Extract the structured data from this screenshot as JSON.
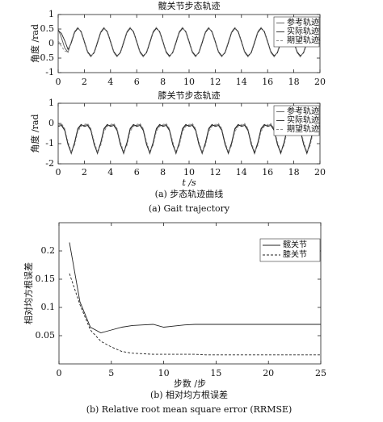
{
  "chart_data": [
    {
      "type": "line",
      "title": "髋关节步态轨迹",
      "ylabel": "角度 /rad",
      "x": [
        0,
        0.25,
        0.5,
        0.75,
        1,
        1.25,
        1.5,
        1.75,
        2,
        2.25,
        2.5,
        2.75,
        3,
        3.25,
        3.5,
        3.75,
        4,
        4.25,
        4.5,
        4.75,
        5,
        5.25,
        5.5,
        5.75,
        6,
        6.25,
        6.5,
        6.75,
        7,
        7.25,
        7.5,
        7.75,
        8,
        8.25,
        8.5,
        8.75,
        9,
        9.25,
        9.5,
        9.75,
        10,
        10.25,
        10.5,
        10.75,
        11,
        11.25,
        11.5,
        11.75,
        12,
        12.25,
        12.5,
        12.75,
        13,
        13.25,
        13.5,
        13.75,
        14,
        14.25,
        14.5,
        14.75,
        15,
        15.25,
        15.5,
        15.75,
        16,
        16.25,
        16.5,
        16.75,
        17,
        17.25,
        17.5,
        17.75,
        18,
        18.25,
        18.5,
        18.75,
        19,
        19.25,
        19.5,
        19.75,
        20
      ],
      "series": [
        {
          "name": "参考轨迹",
          "color": "#555555",
          "line_style": "solid",
          "values": [
            0.5,
            0.2,
            -0.15,
            -0.3,
            0.05,
            0.4,
            0.55,
            0.4,
            0.05,
            -0.3,
            -0.45,
            -0.3,
            0.05,
            0.4,
            0.55,
            0.4,
            0.05,
            -0.3,
            -0.45,
            -0.3,
            0.05,
            0.4,
            0.55,
            0.4,
            0.05,
            -0.3,
            -0.45,
            -0.3,
            0.05,
            0.4,
            0.55,
            0.4,
            0.05,
            -0.3,
            -0.45,
            -0.3,
            0.05,
            0.4,
            0.55,
            0.4,
            0.05,
            -0.3,
            -0.45,
            -0.3,
            0.05,
            0.4,
            0.55,
            0.4,
            0.05,
            -0.3,
            -0.45,
            -0.3,
            0.05,
            0.4,
            0.55,
            0.4,
            0.05,
            -0.3,
            -0.45,
            -0.3,
            0.05,
            0.4,
            0.55,
            0.4,
            0.05,
            -0.3,
            -0.45,
            -0.3,
            0.05,
            0.4,
            0.55,
            0.4,
            0.05,
            -0.3,
            -0.45,
            -0.3,
            0.05,
            0.4,
            0.55,
            0.4,
            0.05
          ]
        },
        {
          "name": "实际轨迹",
          "color": "#222222",
          "line_style": "solid",
          "values": [
            0.45,
            0.35,
            0.1,
            -0.2,
            0.02,
            0.38,
            0.52,
            0.42,
            0.08,
            -0.28,
            -0.42,
            -0.32,
            0.02,
            0.38,
            0.52,
            0.42,
            0.08,
            -0.28,
            -0.42,
            -0.32,
            0.02,
            0.38,
            0.52,
            0.42,
            0.08,
            -0.28,
            -0.42,
            -0.32,
            0.02,
            0.38,
            0.52,
            0.42,
            0.08,
            -0.28,
            -0.42,
            -0.32,
            0.02,
            0.38,
            0.52,
            0.42,
            0.08,
            -0.28,
            -0.42,
            -0.32,
            0.02,
            0.38,
            0.52,
            0.42,
            0.08,
            -0.28,
            -0.42,
            -0.32,
            0.02,
            0.38,
            0.52,
            0.42,
            0.08,
            -0.28,
            -0.42,
            -0.32,
            0.02,
            0.38,
            0.52,
            0.42,
            0.08,
            -0.28,
            -0.42,
            -0.32,
            0.02,
            0.38,
            0.52,
            0.42,
            0.08,
            -0.28,
            -0.42,
            -0.32,
            0.02,
            0.38,
            0.52,
            0.42,
            0.08
          ]
        },
        {
          "name": "期望轨迹",
          "color": "#888888",
          "line_style": "dashed",
          "values": [
            0.1,
            -0.1,
            -0.25,
            -0.3,
            0.08,
            0.42,
            0.56,
            0.38,
            0.03,
            -0.32,
            -0.46,
            -0.28,
            0.08,
            0.42,
            0.56,
            0.38,
            0.03,
            -0.32,
            -0.46,
            -0.28,
            0.08,
            0.42,
            0.56,
            0.38,
            0.03,
            -0.32,
            -0.46,
            -0.28,
            0.08,
            0.42,
            0.56,
            0.38,
            0.03,
            -0.32,
            -0.46,
            -0.28,
            0.08,
            0.42,
            0.56,
            0.38,
            0.03,
            -0.32,
            -0.46,
            -0.28,
            0.08,
            0.42,
            0.56,
            0.38,
            0.03,
            -0.32,
            -0.46,
            -0.28,
            0.08,
            0.42,
            0.56,
            0.38,
            0.03,
            -0.32,
            -0.46,
            -0.28,
            0.08,
            0.42,
            0.56,
            0.38,
            0.03,
            -0.32,
            -0.46,
            -0.28,
            0.08,
            0.42,
            0.56,
            0.38,
            0.03,
            -0.32,
            -0.46,
            -0.28,
            0.08,
            0.42,
            0.56,
            0.38,
            0.03
          ]
        }
      ],
      "xlim": [
        0,
        20
      ],
      "xticks": [
        0,
        2,
        4,
        6,
        8,
        10,
        12,
        14,
        16,
        18,
        20
      ],
      "ylim": [
        -1,
        1
      ],
      "yticks": [
        -1,
        -0.5,
        0,
        0.5,
        1
      ],
      "legend": "upper right"
    },
    {
      "type": "line",
      "title": "膝关节步态轨迹",
      "ylabel": "角度 /rad",
      "xlabel": "t /s",
      "x": [
        0,
        0.25,
        0.5,
        0.75,
        1,
        1.25,
        1.5,
        1.75,
        2,
        2.25,
        2.5,
        2.75,
        3,
        3.25,
        3.5,
        3.75,
        4,
        4.25,
        4.5,
        4.75,
        5,
        5.25,
        5.5,
        5.75,
        6,
        6.25,
        6.5,
        6.75,
        7,
        7.25,
        7.5,
        7.75,
        8,
        8.25,
        8.5,
        8.75,
        9,
        9.25,
        9.5,
        9.75,
        10,
        10.25,
        10.5,
        10.75,
        11,
        11.25,
        11.5,
        11.75,
        12,
        12.25,
        12.5,
        12.75,
        13,
        13.25,
        13.5,
        13.75,
        14,
        14.25,
        14.5,
        14.75,
        15,
        15.25,
        15.5,
        15.75,
        16,
        16.25,
        16.5,
        16.75,
        17,
        17.25,
        17.5,
        17.75,
        18,
        18.25,
        18.5,
        18.75,
        19,
        19.25,
        19.5,
        19.75,
        20
      ],
      "series": [
        {
          "name": "参考轨迹",
          "color": "#555555",
          "line_style": "solid",
          "values": [
            -0.1,
            -0.05,
            -0.3,
            -1.0,
            -1.5,
            -1.0,
            -0.3,
            -0.1,
            -0.1,
            -0.05,
            -0.3,
            -1.0,
            -1.5,
            -1.0,
            -0.3,
            -0.1,
            -0.1,
            -0.05,
            -0.3,
            -1.0,
            -1.5,
            -1.0,
            -0.3,
            -0.1,
            -0.1,
            -0.05,
            -0.3,
            -1.0,
            -1.5,
            -1.0,
            -0.3,
            -0.1,
            -0.1,
            -0.05,
            -0.3,
            -1.0,
            -1.5,
            -1.0,
            -0.3,
            -0.1,
            -0.1,
            -0.05,
            -0.3,
            -1.0,
            -1.5,
            -1.0,
            -0.3,
            -0.1,
            -0.1,
            -0.05,
            -0.3,
            -1.0,
            -1.5,
            -1.0,
            -0.3,
            -0.1,
            -0.1,
            -0.05,
            -0.3,
            -1.0,
            -1.5,
            -1.0,
            -0.3,
            -0.1,
            -0.1,
            -0.05,
            -0.3,
            -1.0,
            -1.5,
            -1.0,
            -0.3,
            -0.1,
            -0.1,
            -0.05,
            -0.3,
            -1.0,
            -1.5,
            -1.0,
            -0.3,
            -0.1,
            -0.1
          ]
        },
        {
          "name": "实际轨迹",
          "color": "#222222",
          "line_style": "solid",
          "values": [
            -0.15,
            -0.1,
            -0.35,
            -1.05,
            -1.45,
            -0.95,
            -0.25,
            -0.05,
            -0.15,
            -0.1,
            -0.35,
            -1.05,
            -1.45,
            -0.95,
            -0.25,
            -0.05,
            -0.15,
            -0.1,
            -0.35,
            -1.05,
            -1.45,
            -0.95,
            -0.25,
            -0.05,
            -0.15,
            -0.1,
            -0.35,
            -1.05,
            -1.45,
            -0.95,
            -0.25,
            -0.05,
            -0.15,
            -0.1,
            -0.35,
            -1.05,
            -1.45,
            -0.95,
            -0.25,
            -0.05,
            -0.15,
            -0.1,
            -0.35,
            -1.05,
            -1.45,
            -0.95,
            -0.25,
            -0.05,
            -0.15,
            -0.1,
            -0.35,
            -1.05,
            -1.45,
            -0.95,
            -0.25,
            -0.05,
            -0.15,
            -0.1,
            -0.35,
            -1.05,
            -1.45,
            -0.95,
            -0.25,
            -0.05,
            -0.15,
            -0.1,
            -0.35,
            -1.05,
            -1.45,
            -0.95,
            -0.25,
            -0.05,
            -0.15,
            -0.1,
            -0.35,
            -1.05,
            -1.45,
            -0.95,
            -0.25,
            -0.05,
            -0.15
          ]
        },
        {
          "name": "期望轨迹",
          "color": "#888888",
          "line_style": "dashed",
          "values": [
            -0.05,
            0,
            -0.25,
            -0.9,
            -1.4,
            -1.1,
            -0.4,
            -0.15,
            -0.05,
            0,
            -0.25,
            -0.9,
            -1.4,
            -1.1,
            -0.4,
            -0.15,
            -0.05,
            0,
            -0.25,
            -0.9,
            -1.4,
            -1.1,
            -0.4,
            -0.15,
            -0.05,
            0,
            -0.25,
            -0.9,
            -1.4,
            -1.1,
            -0.4,
            -0.15,
            -0.05,
            0,
            -0.25,
            -0.9,
            -1.4,
            -1.1,
            -0.4,
            -0.15,
            -0.05,
            0,
            -0.25,
            -0.9,
            -1.4,
            -1.1,
            -0.4,
            -0.15,
            -0.05,
            0,
            -0.25,
            -0.9,
            -1.4,
            -1.1,
            -0.4,
            -0.15,
            -0.05,
            0,
            -0.25,
            -0.9,
            -1.4,
            -1.1,
            -0.4,
            -0.15,
            -0.05,
            0,
            -0.25,
            -0.9,
            -1.4,
            -1.1,
            -0.4,
            -0.15,
            -0.05,
            0,
            -0.25,
            -0.9,
            -1.4,
            -1.1,
            -0.4,
            -0.15,
            -0.05
          ]
        }
      ],
      "xlim": [
        0,
        20
      ],
      "xticks": [
        0,
        2,
        4,
        6,
        8,
        10,
        12,
        14,
        16,
        18,
        20
      ],
      "ylim": [
        -2,
        1
      ],
      "yticks": [
        -2,
        -1,
        0,
        1
      ],
      "legend": "upper right"
    },
    {
      "type": "line",
      "xlabel": "步数 /步",
      "ylabel": "相对均方根误差",
      "x": [
        1,
        2,
        3,
        4,
        5,
        6,
        7,
        8,
        9,
        10,
        11,
        12,
        13,
        14,
        15,
        16,
        17,
        18,
        19,
        20,
        21,
        22,
        23,
        24,
        25
      ],
      "series": [
        {
          "name": "髋关节",
          "color": "#222222",
          "line_style": "solid",
          "values": [
            0.215,
            0.11,
            0.065,
            0.055,
            0.06,
            0.065,
            0.068,
            0.069,
            0.07,
            0.065,
            0.067,
            0.069,
            0.07,
            0.07,
            0.07,
            0.07,
            0.07,
            0.07,
            0.07,
            0.07,
            0.07,
            0.07,
            0.07,
            0.07,
            0.07
          ]
        },
        {
          "name": "膝关节",
          "color": "#222222",
          "line_style": "dashed",
          "values": [
            0.16,
            0.105,
            0.06,
            0.04,
            0.03,
            0.022,
            0.019,
            0.018,
            0.017,
            0.017,
            0.017,
            0.017,
            0.017,
            0.016,
            0.016,
            0.016,
            0.016,
            0.016,
            0.016,
            0.016,
            0.016,
            0.016,
            0.016,
            0.016,
            0.016
          ]
        }
      ],
      "xlim": [
        0,
        25
      ],
      "xticks": [
        0,
        5,
        10,
        15,
        20,
        25
      ],
      "ylim": [
        0,
        0.25
      ],
      "yticks": [
        0.05,
        0.1,
        0.15,
        0.2
      ],
      "legend": "upper right"
    }
  ],
  "captions": [
    "(a) 步态轨迹曲线",
    "(a) Gait trajectory",
    "(b) 相对均方根误差",
    "(b) Relative root mean square error (RRMSE)"
  ]
}
